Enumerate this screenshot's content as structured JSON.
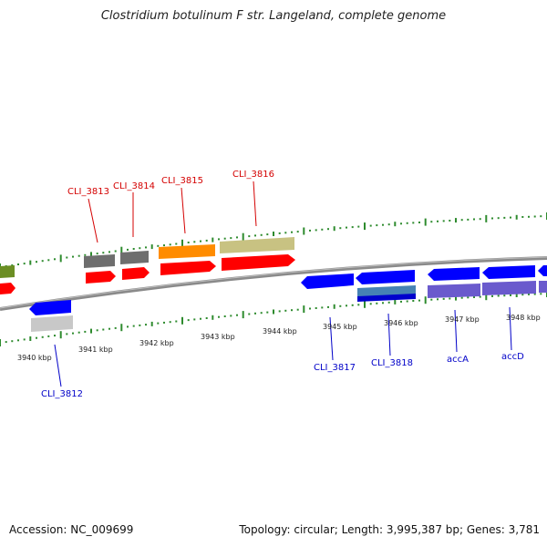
{
  "title": "Clostridium botulinum F str. Langeland, complete genome",
  "footer": {
    "accession": "Accession: NC_009699",
    "stats": "Topology: circular; Length: 3,995,387 bp; Genes: 3,781"
  },
  "colors": {
    "backbone": "#8a8a8a",
    "tick": "#2e8b2e",
    "forward_label": "#d40000",
    "reverse_label": "#0000c8"
  },
  "position_labels": [
    "3940 kbp",
    "3941 kbp",
    "3942 kbp",
    "3943 kbp",
    "3944 kbp",
    "3945 kbp",
    "3946 kbp",
    "3947 kbp",
    "3948 kbp"
  ],
  "gene_labels": {
    "forward": [
      "CLI_3813",
      "CLI_3814",
      "CLI_3815",
      "CLI_3816"
    ],
    "reverse": [
      "CLI_3812",
      "CLI_3817",
      "CLI_3818",
      "accA",
      "accD"
    ]
  }
}
